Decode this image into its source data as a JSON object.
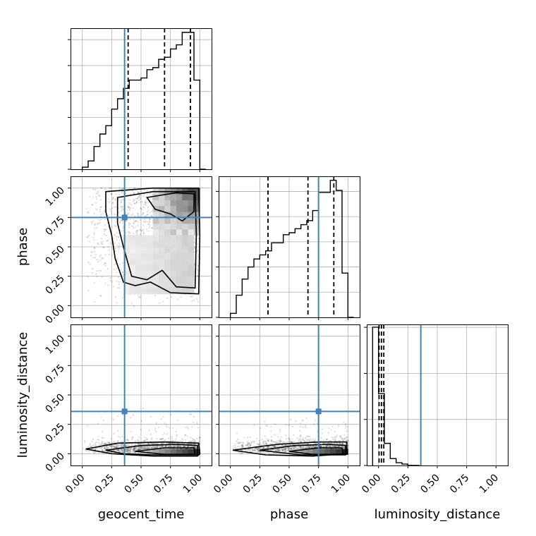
{
  "chart_data": {
    "type": "corner",
    "parameters": [
      "geocent_time",
      "phase",
      "luminosity_distance"
    ],
    "truths": {
      "geocent_time": 0.36,
      "phase": 0.75,
      "luminosity_distance": 0.36
    },
    "tick_values": [
      0.0,
      0.25,
      0.5,
      0.75,
      1.0
    ],
    "tick_labels": [
      "0.00",
      "0.25",
      "0.50",
      "0.75",
      "1.00"
    ],
    "axis_range": [
      -0.1,
      1.1
    ],
    "grid": true,
    "truth_color": "#4682b4",
    "histograms": [
      {
        "parameter": "geocent_time",
        "bin_edges": [
          0.0,
          0.05,
          0.1,
          0.15,
          0.2,
          0.25,
          0.3,
          0.35,
          0.4,
          0.45,
          0.5,
          0.55,
          0.6,
          0.65,
          0.7,
          0.75,
          0.8,
          0.85,
          0.9,
          0.95,
          1.0,
          1.05
        ],
        "counts": [
          1,
          4,
          11,
          17,
          21,
          29,
          34,
          39,
          43,
          43,
          44,
          48,
          49,
          53,
          54,
          58,
          60,
          66,
          66,
          43,
          0
        ],
        "quantiles": [
          0.39,
          0.7,
          0.92
        ]
      },
      {
        "parameter": "phase",
        "bin_edges": [
          0.0,
          0.05,
          0.1,
          0.15,
          0.2,
          0.25,
          0.3,
          0.35,
          0.4,
          0.45,
          0.5,
          0.55,
          0.6,
          0.65,
          0.7,
          0.75,
          0.8,
          0.85,
          0.9,
          0.95,
          1.0,
          1.05
        ],
        "counts": [
          2,
          11,
          19,
          25,
          29,
          31,
          33,
          37,
          37,
          41,
          42,
          44,
          46,
          48,
          53,
          62,
          62,
          68,
          63,
          22,
          0
        ],
        "quantiles": [
          0.32,
          0.66,
          0.88
        ]
      },
      {
        "parameter": "luminosity_distance",
        "bin_edges": [
          -0.05,
          0.0,
          0.05,
          0.1,
          0.15,
          0.2,
          0.25,
          0.3,
          0.35
        ],
        "counts": [
          100,
          52,
          16,
          5,
          2,
          1,
          0,
          0
        ],
        "quantiles": [
          0.005,
          0.025,
          0.045
        ]
      }
    ],
    "scatter_panels": [
      {
        "x": "geocent_time",
        "y": "phase"
      },
      {
        "x": "geocent_time",
        "y": "luminosity_distance"
      },
      {
        "x": "phase",
        "y": "luminosity_distance"
      }
    ]
  }
}
